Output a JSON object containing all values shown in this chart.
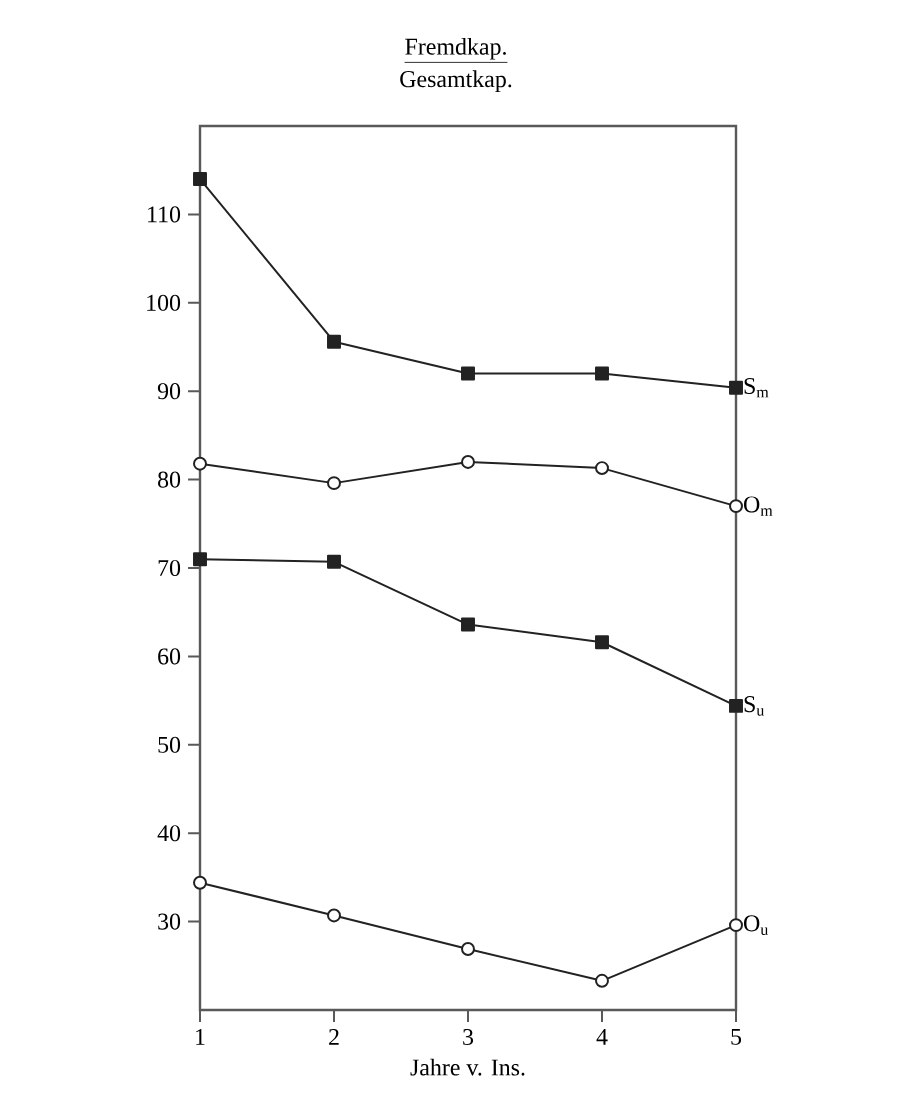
{
  "chart_data": {
    "type": "line",
    "title": "Fremdkap.",
    "subtitle": "Gesamtkap.",
    "xlabel": "Jahre v. Ins.",
    "x": [
      1,
      2,
      3,
      4,
      5
    ],
    "series": [
      {
        "name": "S$_{m}$",
        "color": "#222222",
        "marker": "square",
        "values": [
          114,
          95.6,
          92,
          92,
          90.4
        ]
      },
      {
        "name": "O$_{m}$",
        "color": "#222222",
        "marker": "circle",
        "values": [
          81.8,
          79.6,
          82,
          81.3,
          77
        ]
      },
      {
        "name": "S$_{u}$",
        "color": "#222222",
        "marker": "square",
        "values": [
          71,
          70.7,
          63.6,
          61.6,
          54.4
        ]
      },
      {
        "name": "O$_{u}$",
        "color": "#222222",
        "marker": "circle",
        "values": [
          34.4,
          30.7,
          26.9,
          23.3,
          29.6
        ]
      }
    ],
    "xlim": [
      1,
      5
    ],
    "ylim": [
      20,
      120
    ],
    "xticks": [
      1,
      2,
      3,
      4,
      5
    ],
    "yticks": [
      30,
      40,
      50,
      60,
      70,
      80,
      90,
      100,
      110
    ],
    "grid": false,
    "line_style": "solid"
  }
}
